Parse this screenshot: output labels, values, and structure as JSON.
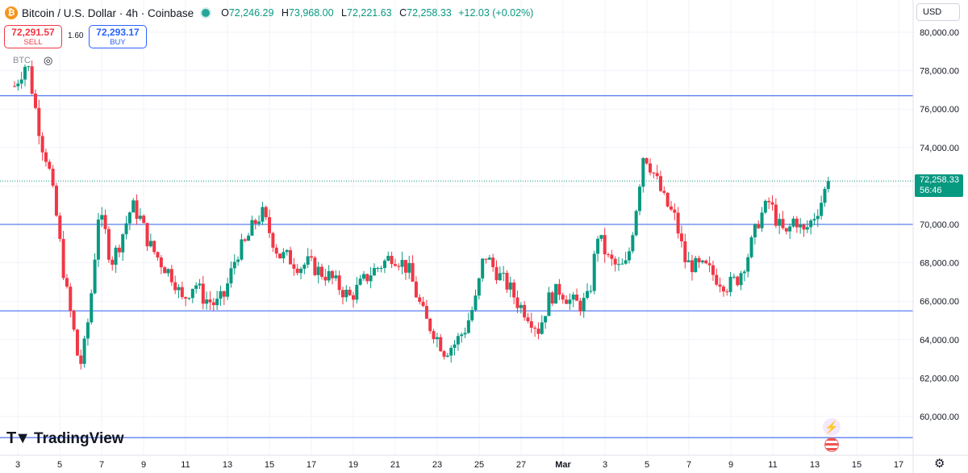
{
  "header": {
    "symbol_title": "Bitcoin / U.S. Dollar · 4h · Coinbase",
    "o_key": "O",
    "o_val": "72,246.29",
    "h_key": "H",
    "h_val": "73,968.00",
    "l_key": "L",
    "l_val": "72,221.63",
    "c_key": "C",
    "c_val": "72,258.33",
    "change": "+12.03 (+0.02%)"
  },
  "trade": {
    "sell_price": "72,291.57",
    "sell_label": "SELL",
    "spread": "1.60",
    "buy_price": "72,293.17",
    "buy_label": "BUY"
  },
  "volume_label": "BTC",
  "currency": "USD",
  "last_price": {
    "price": "72,258.33",
    "countdown": "56:46"
  },
  "brand": "TradingView",
  "icons": {
    "symbol": "bitcoin-icon",
    "status": "market-open-dot-icon",
    "eye": "eye-hidden-icon",
    "flash": "lightning-icon",
    "flag": "us-flag-icon",
    "settings": "gear-icon",
    "logo": "tradingview-logo-icon"
  },
  "colors": {
    "up": "#089981",
    "down": "#f23645",
    "hline": "#5b7ff0",
    "grid": "#f0f3fa",
    "last_price": "#089981"
  },
  "chart_data": {
    "type": "candlestick",
    "interval": "4h",
    "ylim": [
      59000,
      81000
    ],
    "price_ticks": [
      "80,000.00",
      "78,000.00",
      "76,000.00",
      "74,000.00",
      "72,000.00",
      "70,000.00",
      "68,000.00",
      "66,000.00",
      "64,000.00",
      "62,000.00",
      "60,000.00"
    ],
    "price_tick_values": [
      80000,
      78000,
      76000,
      74000,
      72000,
      70000,
      68000,
      66000,
      64000,
      62000,
      60000
    ],
    "date_ticks": [
      "3",
      "5",
      "7",
      "9",
      "11",
      "13",
      "15",
      "17",
      "19",
      "21",
      "23",
      "25",
      "27",
      "Mar",
      "3",
      "5",
      "7",
      "9",
      "11",
      "13",
      "15",
      "17"
    ],
    "date_tick_offsets": [
      0,
      2,
      4,
      6,
      8,
      10,
      12,
      14,
      16,
      18,
      20,
      22,
      24,
      26,
      28,
      30,
      32,
      34,
      36,
      38,
      40,
      42
    ],
    "horizontal_lines": [
      76700,
      70000,
      65500,
      58900
    ],
    "last_price_value": 72258.33,
    "anchors": [
      [
        0,
        77200
      ],
      [
        0.6,
        78500
      ],
      [
        1.0,
        76000
      ],
      [
        1.3,
        74200
      ],
      [
        1.6,
        73200
      ],
      [
        2.0,
        70400
      ],
      [
        2.4,
        67000
      ],
      [
        2.8,
        64600
      ],
      [
        3.1,
        62500
      ],
      [
        3.4,
        64000
      ],
      [
        3.7,
        66800
      ],
      [
        4.0,
        70500
      ],
      [
        4.3,
        69700
      ],
      [
        4.6,
        68000
      ],
      [
        5.0,
        69000
      ],
      [
        5.6,
        71000
      ],
      [
        6.0,
        70300
      ],
      [
        6.4,
        69000
      ],
      [
        7.0,
        68000
      ],
      [
        7.6,
        67200
      ],
      [
        8.0,
        66000
      ],
      [
        8.6,
        67000
      ],
      [
        9.0,
        66200
      ],
      [
        9.6,
        65800
      ],
      [
        10.0,
        66300
      ],
      [
        10.6,
        68500
      ],
      [
        11.0,
        69000
      ],
      [
        11.4,
        70000
      ],
      [
        11.8,
        70600
      ],
      [
        12.2,
        69500
      ],
      [
        12.6,
        68400
      ],
      [
        13.0,
        68300
      ],
      [
        13.6,
        67800
      ],
      [
        14.0,
        68000
      ],
      [
        14.6,
        67500
      ],
      [
        15.0,
        67300
      ],
      [
        15.6,
        66600
      ],
      [
        16.0,
        66200
      ],
      [
        16.6,
        67000
      ],
      [
        17.0,
        67500
      ],
      [
        17.6,
        68000
      ],
      [
        18.0,
        68400
      ],
      [
        18.4,
        68100
      ],
      [
        18.8,
        67600
      ],
      [
        19.2,
        66200
      ],
      [
        19.6,
        65000
      ],
      [
        20.0,
        64400
      ],
      [
        20.5,
        63400
      ],
      [
        21.0,
        63800
      ],
      [
        21.5,
        64600
      ],
      [
        22.0,
        66100
      ],
      [
        22.4,
        68500
      ],
      [
        22.8,
        67800
      ],
      [
        23.2,
        67200
      ],
      [
        23.6,
        66700
      ],
      [
        24.0,
        65900
      ],
      [
        24.5,
        65300
      ],
      [
        25.0,
        64500
      ],
      [
        25.5,
        66200
      ],
      [
        26.0,
        66600
      ],
      [
        26.5,
        66000
      ],
      [
        27.0,
        65800
      ],
      [
        27.4,
        66200
      ],
      [
        27.8,
        69500
      ],
      [
        28.3,
        68200
      ],
      [
        28.8,
        67700
      ],
      [
        29.2,
        67900
      ],
      [
        29.6,
        70600
      ],
      [
        30.0,
        73800
      ],
      [
        30.5,
        72600
      ],
      [
        31.0,
        71200
      ],
      [
        31.5,
        70300
      ],
      [
        32.0,
        68000
      ],
      [
        32.5,
        67800
      ],
      [
        33.0,
        67700
      ],
      [
        33.5,
        67200
      ],
      [
        34.0,
        66800
      ],
      [
        34.5,
        67200
      ],
      [
        35.0,
        68500
      ],
      [
        35.5,
        70300
      ],
      [
        36.0,
        71200
      ],
      [
        36.4,
        70000
      ],
      [
        36.8,
        69400
      ],
      [
        37.2,
        70400
      ],
      [
        37.6,
        69500
      ],
      [
        38.0,
        70200
      ],
      [
        38.4,
        71000
      ],
      [
        38.8,
        72258
      ]
    ]
  }
}
